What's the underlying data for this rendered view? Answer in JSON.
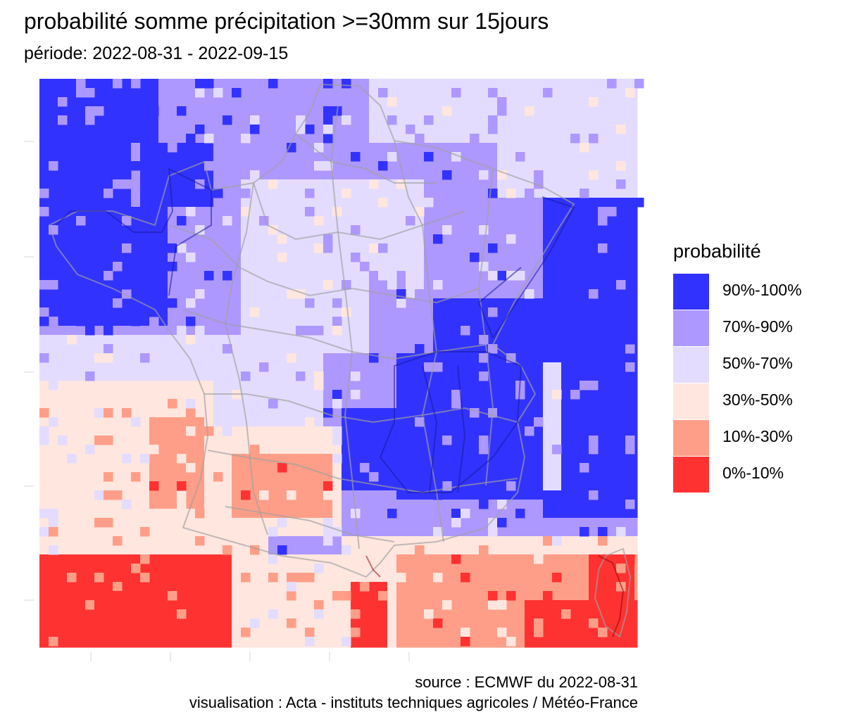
{
  "title": "probabilité somme précipitation >=30mm sur 15jours",
  "subtitle": "période: 2022-08-31 - 2022-09-15",
  "legend": {
    "title": "probabilité",
    "items": [
      {
        "label": "90%-100%",
        "color": "#3232ff"
      },
      {
        "label": "70%-90%",
        "color": "#ad98ff"
      },
      {
        "label": "50%-70%",
        "color": "#e3dcff"
      },
      {
        "label": "30%-50%",
        "color": "#ffe6df"
      },
      {
        "label": "10%-30%",
        "color": "#ff9e88"
      },
      {
        "label": "0%-10%",
        "color": "#ff3232"
      }
    ]
  },
  "caption": {
    "source": "source : ECMWF du 2022-08-31",
    "credit": "visualisation : Acta - instituts techniques agricoles / Météo-France"
  }
}
